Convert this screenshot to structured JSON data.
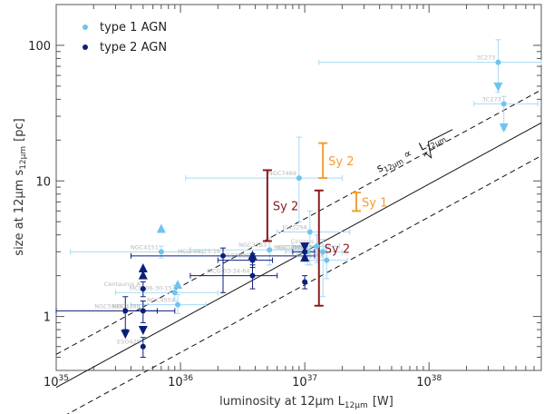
{
  "chart_data": {
    "type": "scatter",
    "x_scale": "log",
    "y_scale": "log",
    "xlim": [
      1e+35,
      8e+38
    ],
    "ylim": [
      0.4,
      200
    ],
    "xlabel": "luminosity at 12μm L",
    "xlabel_sub": "12μm",
    "xlabel_unit": "[W]",
    "ylabel": "size at 12μm  s",
    "ylabel_sub": "12μm",
    "ylabel_unit": "[pc]",
    "x_ticks": [
      {
        "value": 1e+35,
        "mant": "10",
        "exp": "35"
      },
      {
        "value": 1e+36,
        "mant": "10",
        "exp": "36"
      },
      {
        "value": 1e+37,
        "mant": "10",
        "exp": "37"
      },
      {
        "value": 1e+38,
        "mant": "10",
        "exp": "38"
      }
    ],
    "y_ticks": [
      {
        "value": 1,
        "label": "1"
      },
      {
        "value": 10,
        "label": "10"
      },
      {
        "value": 100,
        "label": "100"
      }
    ],
    "legend": {
      "position": "top-left",
      "entries": [
        {
          "label": "type 1 AGN",
          "color": "#6ec3f0"
        },
        {
          "label": "type 2 AGN",
          "color": "#0b1f7a"
        }
      ]
    },
    "colors": {
      "type1": "#6ec3f0",
      "type2": "#0b1f7a",
      "sy2_band": "#8b1a1a",
      "sy1_band": "#f0a030",
      "errbar": "#a9d8f4"
    },
    "relation": {
      "label": "s",
      "label_sub": "12μm",
      "label_mid": " ∝ ",
      "label_root": "L",
      "label_root_sub": "12μm",
      "slope": 0.5,
      "anchor": [
        1e+37,
        3.0
      ],
      "scatter_factor": 1.75,
      "x_range": [
        1e+35,
        8e+38
      ]
    },
    "bands": [
      {
        "label": "Sy 2",
        "x": 5e+36,
        "low": 3.6,
        "high": 12
      },
      {
        "label": "Sy 2",
        "x": 1.3e+37,
        "low": 1.2,
        "high": 8.5
      },
      {
        "label": "Sy 2",
        "x": 1.4e+37,
        "low": 10.5,
        "high": 19
      },
      {
        "label": "Sy 1",
        "x": 2.6e+37,
        "low": 6.0,
        "high": 8.2
      }
    ],
    "series": [
      {
        "name": "type 1 AGN",
        "points": [
          {
            "x": 3.6e+38,
            "y": 75,
            "xerr": [
              1.3e+37,
              8e+38
            ],
            "yerr": [
              45,
              110
            ],
            "label": "3C273"
          },
          {
            "x": 4e+38,
            "y": 37,
            "xerr": [
              2.3e+38,
              7.5e+38
            ],
            "yerr": [
              24,
              42
            ],
            "label": "3C273"
          },
          {
            "x": 9e+36,
            "y": 10.5,
            "xerr": [
              1.1e+36,
              2e+37
            ],
            "yerr": [
              5,
              21
            ],
            "label": "NGC7469"
          },
          {
            "x": 1.1e+37,
            "y": 4.2,
            "xerr": [
              6e+36,
              2.3e+37
            ],
            "yerr": [
              2.4,
              6
            ],
            "label": "IC4329A"
          },
          {
            "x": 5.2e+36,
            "y": 3.1,
            "xerr": [
              1.2e+36,
              1.5e+37
            ],
            "yerr": [
              2.4,
              3.8
            ],
            "label": "NGC3783"
          },
          {
            "x": 1.05e+37,
            "y": 3.0,
            "xerr": [
              7e+36,
              1.6e+37
            ],
            "yerr": [
              2.4,
              3.5
            ],
            "label": "NGC1365"
          },
          {
            "x": 1.25e+37,
            "y": 3.3,
            "xerr": [
              8e+36,
              1.9e+37
            ],
            "yerr": [
              2.5,
              4.0
            ],
            "label": "Circinus"
          },
          {
            "x": 1.4e+37,
            "y": 3.0,
            "xerr": [
              9e+36,
              2e+37
            ],
            "yerr": [
              1.4,
              3.7
            ],
            "label": "NGC4593"
          },
          {
            "x": 1.5e+37,
            "y": 2.6,
            "xerr": [
              1e+37,
              2.2e+37
            ],
            "yerr": [
              1.9,
              3.2
            ],
            "label": "NGC1068"
          },
          {
            "x": 7e+35,
            "y": 3.0,
            "xerr": [
              1.3e+35,
              1.5e+36
            ],
            "yerr": [
              2.7,
              3.3
            ],
            "label": "NGC4151"
          },
          {
            "x": 9e+35,
            "y": 1.5,
            "xerr": [
              3e+35,
              2e+36
            ],
            "yerr": [
              1.3,
              1.7
            ],
            "label": "MCG-06-30-15"
          },
          {
            "x": 9.5e+35,
            "y": 1.22,
            "xerr": [
              4e+35,
              1.6e+36
            ],
            "yerr": [
              1.05,
              1.45
            ],
            "label": "NGC4507"
          },
          {
            "x": 7e+35,
            "y": 4.4,
            "xerr": null,
            "yerr": null,
            "marker": "up",
            "label": ""
          },
          {
            "x": 9.5e+35,
            "y": 1.7,
            "xerr": null,
            "yerr": null,
            "marker": "up",
            "label": ""
          },
          {
            "x": 3.6e+38,
            "y": 50,
            "xerr": null,
            "yerr": null,
            "marker": "down",
            "label": ""
          },
          {
            "x": 4e+38,
            "y": 25,
            "xerr": null,
            "yerr": null,
            "marker": "down",
            "label": ""
          }
        ]
      },
      {
        "name": "type 2 AGN",
        "points": [
          {
            "x": 2.2e+36,
            "y": 2.8,
            "xerr": [
              4e+35,
              1.2e+37
            ],
            "yerr": [
              1.5,
              3.2
            ],
            "label": "MCG-05-23-16"
          },
          {
            "x": 3.8e+36,
            "y": 2.6,
            "xerr": [
              2e+36,
              5.5e+36
            ],
            "yerr": [
              2.3,
              2.9
            ],
            "label": "NGC3281"
          },
          {
            "x": 3.8e+36,
            "y": 2.0,
            "xerr": [
              1.2e+36,
              6e+36
            ],
            "yerr": [
              1.6,
              2.4
            ],
            "label": "MCG-03-34-64"
          },
          {
            "x": 1e+37,
            "y": 3.0,
            "xerr": [
              8e+36,
              1.2e+37
            ],
            "yerr": [
              2.7,
              3.3
            ],
            "label": "NGC5506"
          },
          {
            "x": 1e+37,
            "y": 1.8,
            "xerr": null,
            "yerr": [
              1.6,
              2.0
            ],
            "label": ""
          },
          {
            "x": 5e+35,
            "y": 1.6,
            "xerr": null,
            "yerr": [
              1.4,
              1.8
            ],
            "label": "Centaurus A"
          },
          {
            "x": 5e+35,
            "y": 1.1,
            "xerr": [
              3.5e+35,
              6.5e+35
            ],
            "yerr": [
              0.9,
              1.3
            ],
            "label": "NGC4388"
          },
          {
            "x": 3.6e+35,
            "y": 1.1,
            "xerr": [
              1e+35,
              9e+35
            ],
            "yerr": [
              0.8,
              1.4
            ],
            "label": "NGC5995"
          },
          {
            "x": 5e+35,
            "y": 0.6,
            "xerr": null,
            "yerr": [
              0.5,
              0.7
            ],
            "label": "ESO428"
          },
          {
            "x": 5e+35,
            "y": 2.25,
            "xerr": null,
            "yerr": null,
            "marker": "up",
            "label": ""
          },
          {
            "x": 5e+35,
            "y": 2.0,
            "xerr": null,
            "yerr": null,
            "marker": "up",
            "label": ""
          },
          {
            "x": 3.8e+36,
            "y": 2.8,
            "xerr": null,
            "yerr": null,
            "marker": "up",
            "label": ""
          },
          {
            "x": 1e+37,
            "y": 2.7,
            "xerr": null,
            "yerr": null,
            "marker": "up",
            "label": ""
          },
          {
            "x": 3.6e+35,
            "y": 0.75,
            "xerr": null,
            "yerr": null,
            "marker": "down",
            "label": ""
          },
          {
            "x": 5e+35,
            "y": 0.8,
            "xerr": null,
            "yerr": null,
            "marker": "down",
            "label": ""
          },
          {
            "x": 1e+37,
            "y": 3.3,
            "xerr": null,
            "yerr": null,
            "marker": "down",
            "label": ""
          }
        ]
      }
    ]
  }
}
